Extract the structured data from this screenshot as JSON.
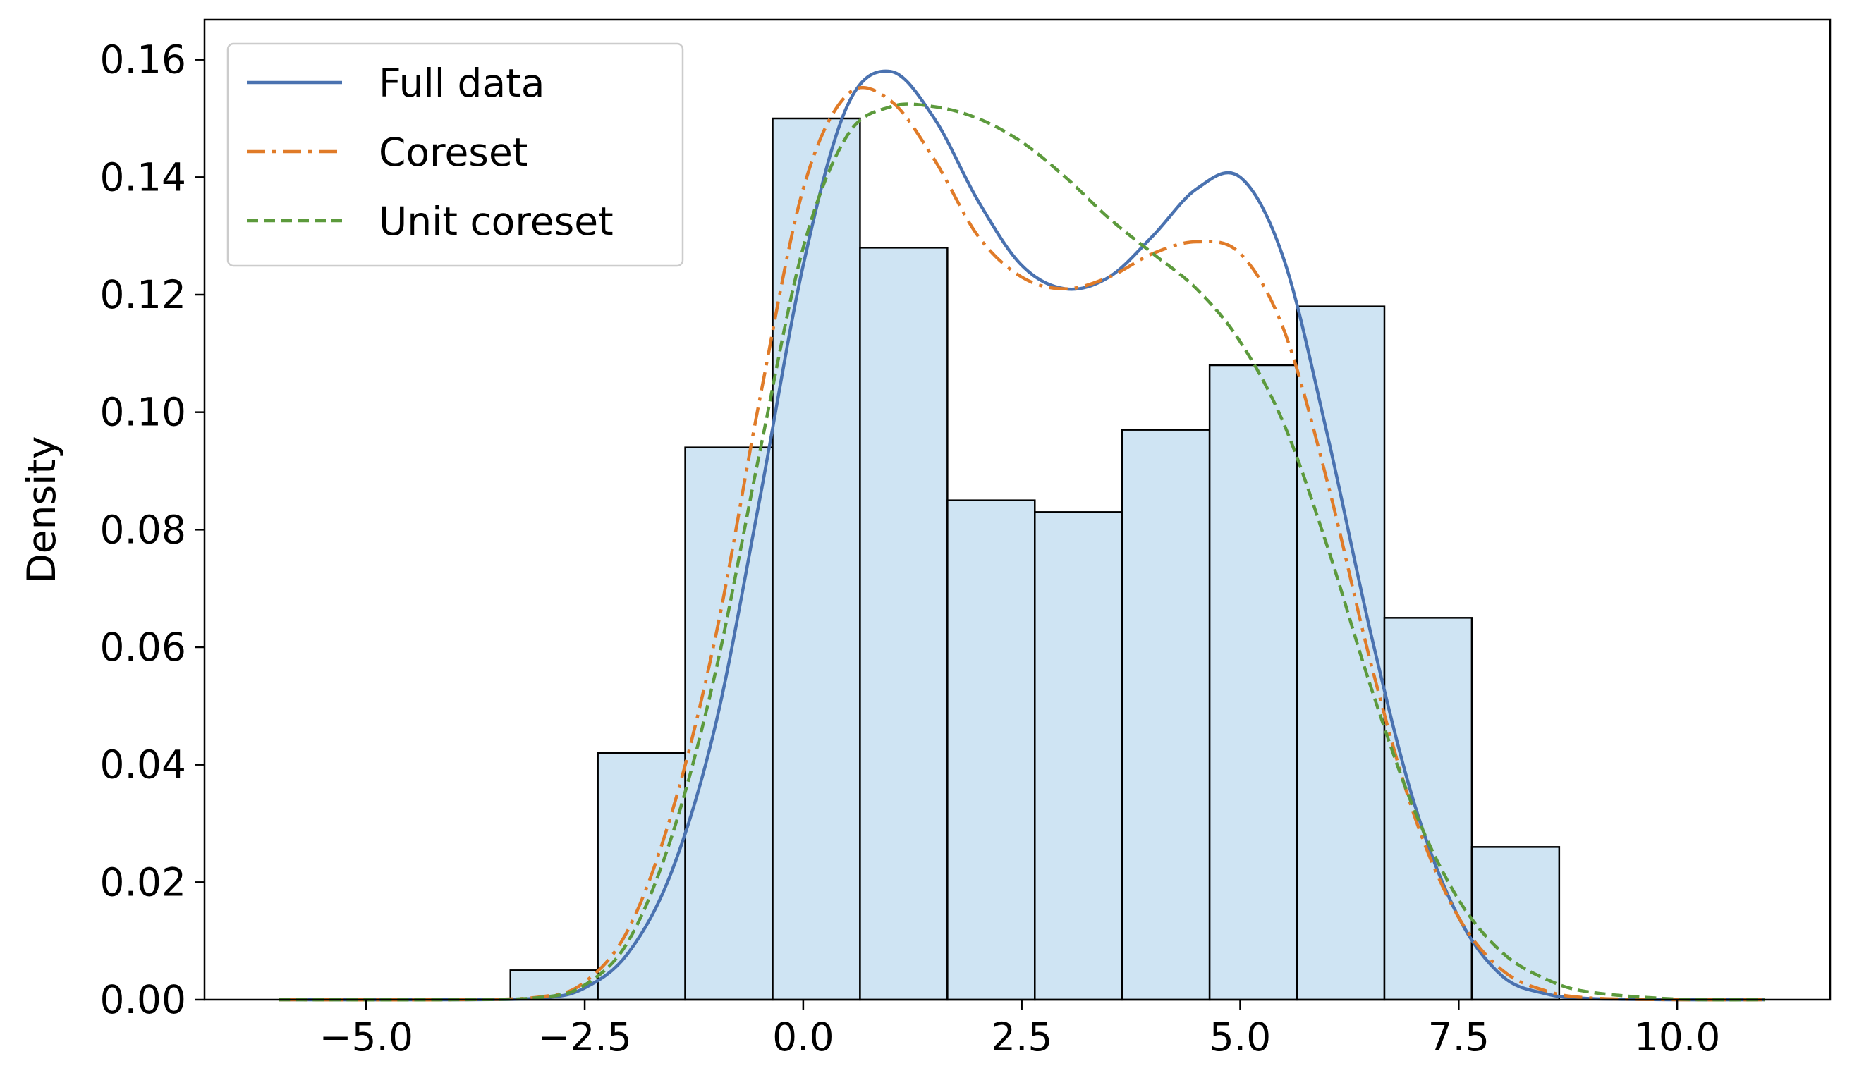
{
  "chart_data": {
    "type": "bar",
    "title": "",
    "xlabel": "",
    "ylabel": "Density",
    "xlim": [
      -6.85,
      11.75
    ],
    "ylim": [
      0,
      0.1668
    ],
    "grid": false,
    "legend_position": "upper-left",
    "x_ticks": [
      {
        "value": -5.0,
        "label": "−5.0"
      },
      {
        "value": -2.5,
        "label": "−2.5"
      },
      {
        "value": 0.0,
        "label": "0.0"
      },
      {
        "value": 2.5,
        "label": "2.5"
      },
      {
        "value": 5.0,
        "label": "5.0"
      },
      {
        "value": 7.5,
        "label": "7.5"
      },
      {
        "value": 10.0,
        "label": "10.0"
      }
    ],
    "y_ticks": [
      {
        "value": 0.0,
        "label": "0.00"
      },
      {
        "value": 0.02,
        "label": "0.02"
      },
      {
        "value": 0.04,
        "label": "0.04"
      },
      {
        "value": 0.06,
        "label": "0.06"
      },
      {
        "value": 0.08,
        "label": "0.08"
      },
      {
        "value": 0.1,
        "label": "0.10"
      },
      {
        "value": 0.12,
        "label": "0.12"
      },
      {
        "value": 0.14,
        "label": "0.14"
      },
      {
        "value": 0.16,
        "label": "0.16"
      }
    ],
    "histogram": {
      "fill_color": "#cfe4f3",
      "edge_color": "#000000",
      "bins": [
        {
          "start": -3.35,
          "end": -2.35,
          "density": 0.005
        },
        {
          "start": -2.35,
          "end": -1.35,
          "density": 0.042
        },
        {
          "start": -1.35,
          "end": -0.35,
          "density": 0.094
        },
        {
          "start": -0.35,
          "end": 0.65,
          "density": 0.15
        },
        {
          "start": 0.65,
          "end": 1.65,
          "density": 0.128
        },
        {
          "start": 1.65,
          "end": 2.65,
          "density": 0.085
        },
        {
          "start": 2.65,
          "end": 3.65,
          "density": 0.083
        },
        {
          "start": 3.65,
          "end": 4.65,
          "density": 0.097
        },
        {
          "start": 4.65,
          "end": 5.65,
          "density": 0.108
        },
        {
          "start": 5.65,
          "end": 6.65,
          "density": 0.118
        },
        {
          "start": 6.65,
          "end": 7.65,
          "density": 0.065
        },
        {
          "start": 7.65,
          "end": 8.65,
          "density": 0.026
        }
      ]
    },
    "series": [
      {
        "name": "Full data",
        "color": "#4a72b0",
        "dash": "solid",
        "x": [
          -6,
          -4,
          -3,
          -2.5,
          -2,
          -1.5,
          -1,
          -0.5,
          0,
          0.5,
          1,
          1.5,
          2,
          2.5,
          3,
          3.5,
          4,
          4.5,
          5,
          5.5,
          6,
          6.5,
          7,
          7.5,
          8,
          8.5,
          9,
          10,
          11
        ],
        "y": [
          0,
          0,
          0.0003,
          0.002,
          0.008,
          0.022,
          0.047,
          0.085,
          0.125,
          0.152,
          0.158,
          0.15,
          0.136,
          0.125,
          0.121,
          0.123,
          0.13,
          0.138,
          0.14,
          0.126,
          0.096,
          0.062,
          0.033,
          0.014,
          0.004,
          0.001,
          0.0002,
          0,
          0
        ]
      },
      {
        "name": "Coreset",
        "color": "#e07b28",
        "dash": "dashdot",
        "x": [
          -6,
          -4,
          -3,
          -2.5,
          -2,
          -1.5,
          -1,
          -0.5,
          0,
          0.5,
          1,
          1.5,
          2,
          2.5,
          3,
          3.5,
          4,
          4.5,
          5,
          5.5,
          6,
          6.5,
          7,
          7.5,
          8,
          8.5,
          9,
          10,
          11
        ],
        "y": [
          0,
          0,
          0.0005,
          0.003,
          0.012,
          0.032,
          0.062,
          0.102,
          0.138,
          0.154,
          0.153,
          0.143,
          0.13,
          0.123,
          0.121,
          0.123,
          0.127,
          0.129,
          0.127,
          0.114,
          0.088,
          0.057,
          0.031,
          0.014,
          0.005,
          0.0015,
          0.0003,
          0,
          0
        ]
      },
      {
        "name": "Unit coreset",
        "color": "#5c9a3c",
        "dash": "dashed",
        "x": [
          -6,
          -4,
          -3,
          -2.5,
          -2,
          -1.5,
          -1,
          -0.5,
          0,
          0.5,
          1,
          1.5,
          2,
          2.5,
          3,
          3.5,
          4,
          4.5,
          5,
          5.5,
          6,
          6.5,
          7,
          7.5,
          8,
          8.5,
          9,
          10,
          11
        ],
        "y": [
          0,
          0,
          0.0004,
          0.0025,
          0.01,
          0.028,
          0.056,
          0.093,
          0.128,
          0.147,
          0.152,
          0.152,
          0.15,
          0.146,
          0.14,
          0.133,
          0.127,
          0.121,
          0.112,
          0.098,
          0.077,
          0.053,
          0.032,
          0.017,
          0.008,
          0.0035,
          0.0013,
          0.0001,
          0
        ]
      }
    ]
  }
}
